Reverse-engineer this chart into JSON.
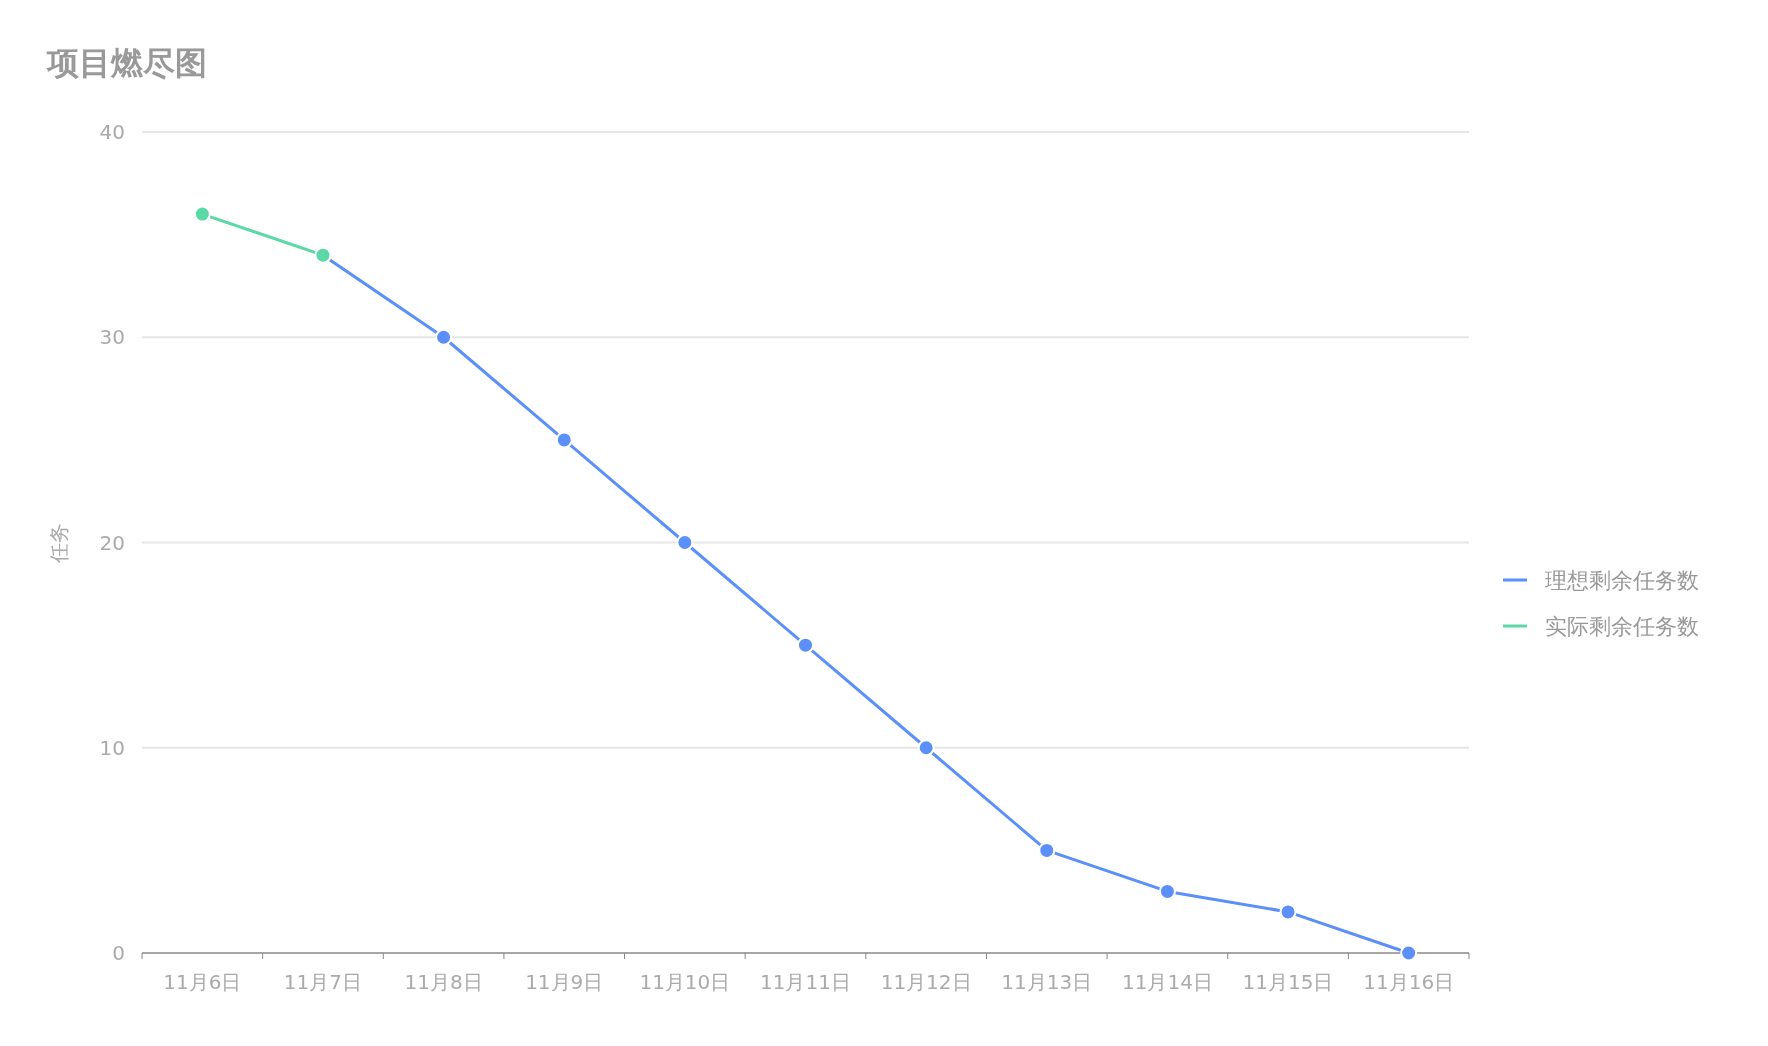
{
  "chart_data": {
    "type": "line",
    "title": "项目燃尽图",
    "ylabel": "任务",
    "categories": [
      "11月6日",
      "11月7日",
      "11月8日",
      "11月9日",
      "11月10日",
      "11月11日",
      "11月12日",
      "11月13日",
      "11月14日",
      "11月15日",
      "11月16日"
    ],
    "series": [
      {
        "name": "理想剩余任务数",
        "color": "#5b8ff9",
        "values": [
          null,
          34,
          30,
          25,
          20,
          15,
          10,
          5,
          3,
          2,
          0
        ]
      },
      {
        "name": "实际剩余任务数",
        "color": "#5ad8a6",
        "values": [
          36,
          34,
          null,
          null,
          null,
          null,
          null,
          null,
          null,
          null,
          null
        ]
      }
    ],
    "ylim": [
      0,
      40
    ],
    "yticks": [
      0,
      10,
      20,
      30,
      40
    ],
    "grid": "y",
    "legend": "right",
    "marker": "circle",
    "line_style": "solid"
  }
}
